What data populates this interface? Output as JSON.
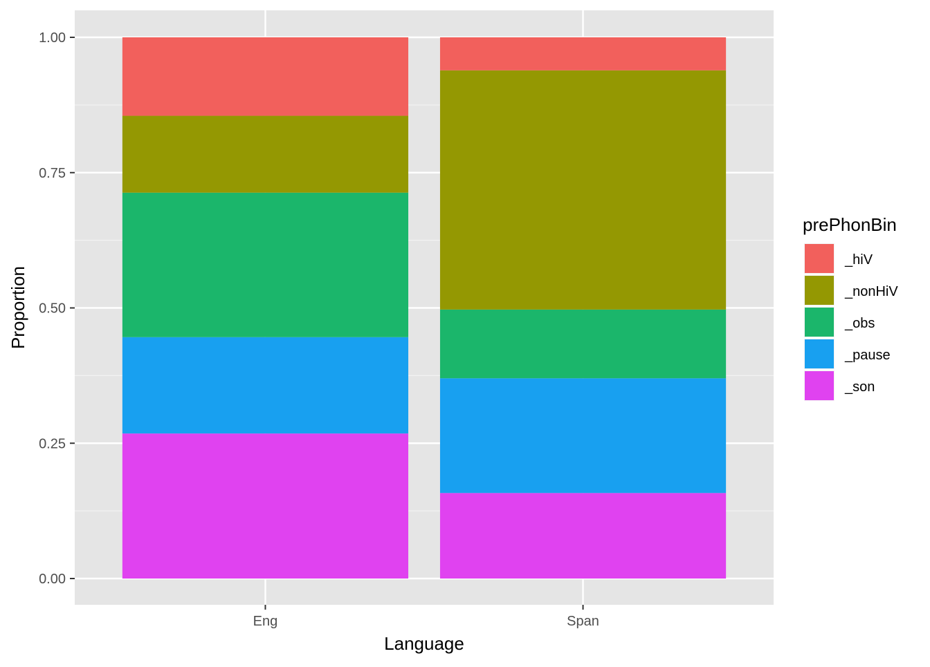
{
  "chart_data": {
    "type": "bar",
    "stacked": true,
    "categories": [
      "Eng",
      "Span"
    ],
    "series": [
      {
        "name": "_son",
        "color": "#E042F0",
        "values": [
          0.268,
          0.158
        ]
      },
      {
        "name": "_pause",
        "color": "#18A0F0",
        "values": [
          0.178,
          0.212
        ]
      },
      {
        "name": "_obs",
        "color": "#1BB66B",
        "values": [
          0.267,
          0.127
        ]
      },
      {
        "name": "_nonHiV",
        "color": "#949802",
        "values": [
          0.142,
          0.442
        ]
      },
      {
        "name": "_hiV",
        "color": "#F2605C",
        "values": [
          0.145,
          0.061
        ]
      }
    ],
    "xlabel": "Language",
    "ylabel": "Proportion",
    "ylim": [
      0,
      1
    ],
    "yticks": [
      "0.00",
      "0.25",
      "0.50",
      "0.75",
      "1.00"
    ],
    "legend": {
      "title": "prePhonBin",
      "position": "right",
      "entries": [
        "_hiV",
        "_nonHiV",
        "_obs",
        "_pause",
        "_son"
      ]
    },
    "grid": true,
    "panel_background": "#E5E5E5"
  }
}
